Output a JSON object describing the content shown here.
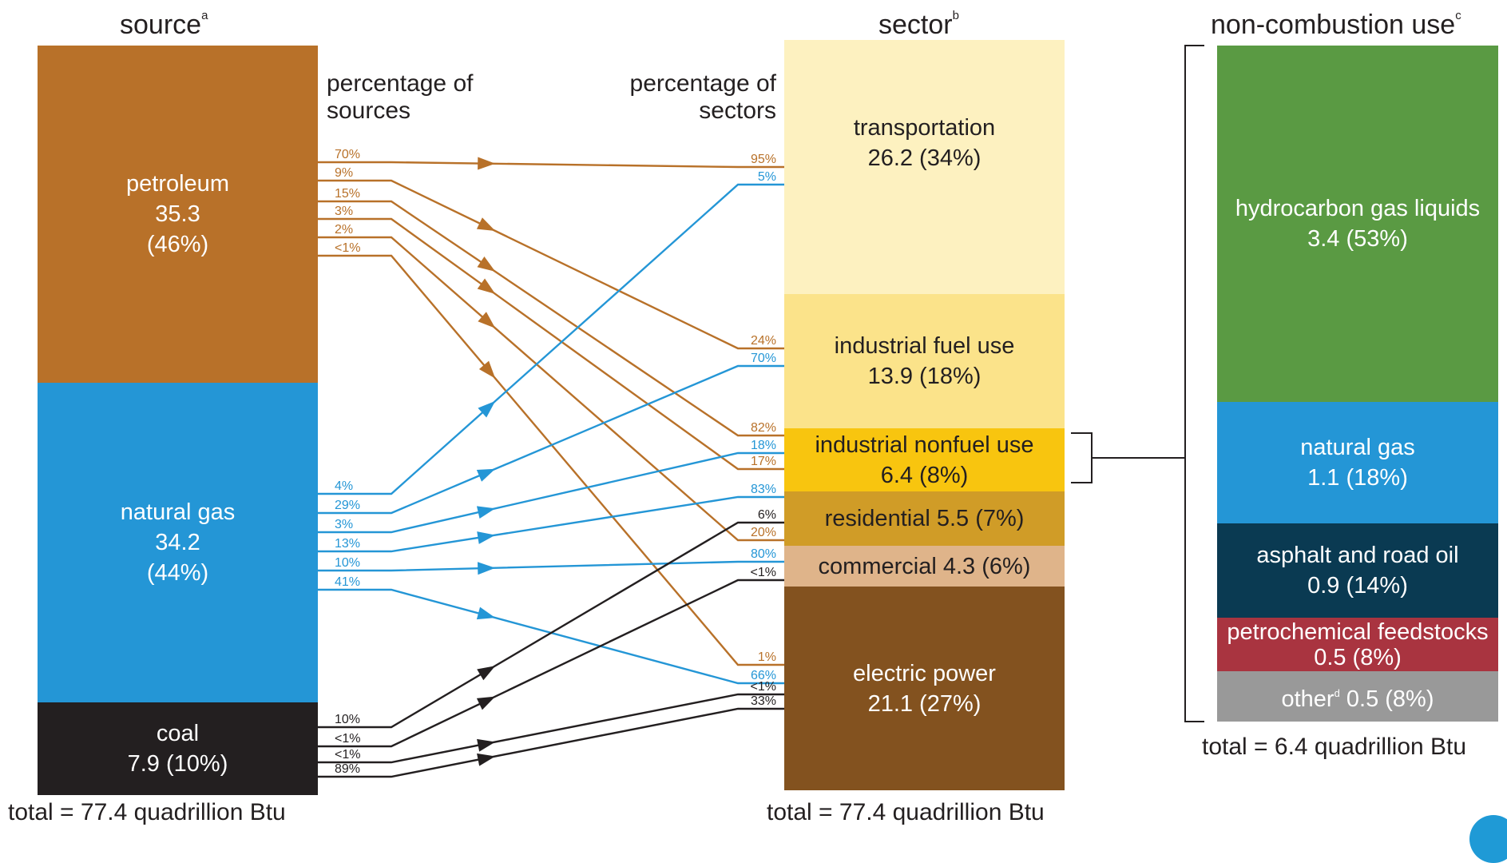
{
  "headers": {
    "source": "source",
    "source_note": "a",
    "sector": "sector",
    "sector_note": "b",
    "noncombustion": "non-combustion use",
    "noncombustion_note": "c"
  },
  "subheaders": {
    "sources": "percentage of\nsources",
    "sectors": "percentage of\nsectors"
  },
  "totals": {
    "source": "total = 77.4 quadrillion Btu",
    "sector": "total = 77.4 quadrillion Btu",
    "noncombustion": "total = 6.4 quadrillion Btu"
  },
  "sources": [
    {
      "key": "petroleum",
      "lines": [
        "petroleum",
        "35.3",
        "(46%)"
      ],
      "value": 35.3,
      "share": 46,
      "color": "#b87129"
    },
    {
      "key": "natural-gas",
      "lines": [
        "natural gas",
        "34.2",
        "(44%)"
      ],
      "value": 34.2,
      "share": 44,
      "color": "#2496d6"
    },
    {
      "key": "coal",
      "lines": [
        "coal",
        "7.9 (10%)"
      ],
      "value": 7.9,
      "share": 10,
      "color": "#231f20"
    }
  ],
  "sectors": [
    {
      "key": "transportation",
      "lines": [
        "transportation",
        "26.2 (34%)"
      ],
      "value": 26.2,
      "share": 34,
      "color": "#fdf1c0"
    },
    {
      "key": "industrial-fuel",
      "lines": [
        "industrial fuel use",
        "13.9 (18%)"
      ],
      "value": 13.9,
      "share": 18,
      "color": "#fbe38a"
    },
    {
      "key": "industrial-nonfuel",
      "lines": [
        "industrial nonfuel use",
        "6.4 (8%)"
      ],
      "value": 6.4,
      "share": 8,
      "color": "#f8c50f"
    },
    {
      "key": "residential",
      "lines": [
        "residential 5.5 (7%)"
      ],
      "value": 5.5,
      "share": 7,
      "color": "#d09c27"
    },
    {
      "key": "commercial",
      "lines": [
        "commercial 4.3 (6%)"
      ],
      "value": 4.3,
      "share": 6,
      "color": "#dfb48a"
    },
    {
      "key": "electric-power",
      "lines": [
        "electric power",
        "21.1 (27%)"
      ],
      "value": 21.1,
      "share": 27,
      "color": "#83521f"
    }
  ],
  "noncombustion": [
    {
      "key": "hydrocarbon-gas-liquids",
      "lines": [
        "hydrocarbon gas liquids",
        "3.4 (53%)"
      ],
      "value": 3.4,
      "share": 53,
      "color": "#5a9a43"
    },
    {
      "key": "natural-gas",
      "lines": [
        "natural gas",
        "1.1 (18%)"
      ],
      "value": 1.1,
      "share": 18,
      "color": "#2496d6"
    },
    {
      "key": "asphalt-road-oil",
      "lines": [
        "asphalt and road oil",
        "0.9 (14%)"
      ],
      "value": 0.9,
      "share": 14,
      "color": "#0a3a52"
    },
    {
      "key": "petrochemical-feedstocks",
      "lines": [
        "petrochemical feedstocks",
        "0.5 (8%)"
      ],
      "value": 0.5,
      "share": 8,
      "color": "#a93440"
    },
    {
      "key": "other",
      "lines": [
        "other",
        "0.5 (8%)"
      ],
      "note": "d",
      "value": 0.5,
      "share": 8,
      "color": "#999999"
    }
  ],
  "flows": [
    {
      "from": "petroleum",
      "to": "transportation",
      "source_pct": "70%",
      "sector_pct": "95%"
    },
    {
      "from": "petroleum",
      "to": "industrial-fuel",
      "source_pct": "9%",
      "sector_pct": "24%"
    },
    {
      "from": "petroleum",
      "to": "industrial-nonfuel",
      "source_pct": "15%",
      "sector_pct": "82%"
    },
    {
      "from": "petroleum",
      "to": "residential",
      "source_pct": "3%",
      "sector_pct": "17%"
    },
    {
      "from": "petroleum",
      "to": "commercial",
      "source_pct": "2%",
      "sector_pct": "20%"
    },
    {
      "from": "petroleum",
      "to": "electric-power",
      "source_pct": "<1%",
      "sector_pct": "1%"
    },
    {
      "from": "natural-gas",
      "to": "transportation",
      "source_pct": "4%",
      "sector_pct": "5%"
    },
    {
      "from": "natural-gas",
      "to": "industrial-fuel",
      "source_pct": "29%",
      "sector_pct": "70%"
    },
    {
      "from": "natural-gas",
      "to": "industrial-nonfuel",
      "source_pct": "3%",
      "sector_pct": "18%"
    },
    {
      "from": "natural-gas",
      "to": "residential",
      "source_pct": "13%",
      "sector_pct": "83%"
    },
    {
      "from": "natural-gas",
      "to": "commercial",
      "source_pct": "10%",
      "sector_pct": "80%"
    },
    {
      "from": "natural-gas",
      "to": "electric-power",
      "source_pct": "41%",
      "sector_pct": "66%"
    },
    {
      "from": "coal",
      "to": "industrial-fuel",
      "source_pct": "10%",
      "sector_pct": "6%"
    },
    {
      "from": "coal",
      "to": "industrial-nonfuel",
      "source_pct": "<1%",
      "sector_pct": "<1%"
    },
    {
      "from": "coal",
      "to": "commercial",
      "source_pct": "<1%",
      "sector_pct": "<1%"
    },
    {
      "from": "coal",
      "to": "electric-power",
      "source_pct": "89%",
      "sector_pct": "33%"
    }
  ],
  "flow_colors": {
    "petroleum": "#b87129",
    "natural-gas": "#2496d6",
    "coal": "#231f20"
  }
}
